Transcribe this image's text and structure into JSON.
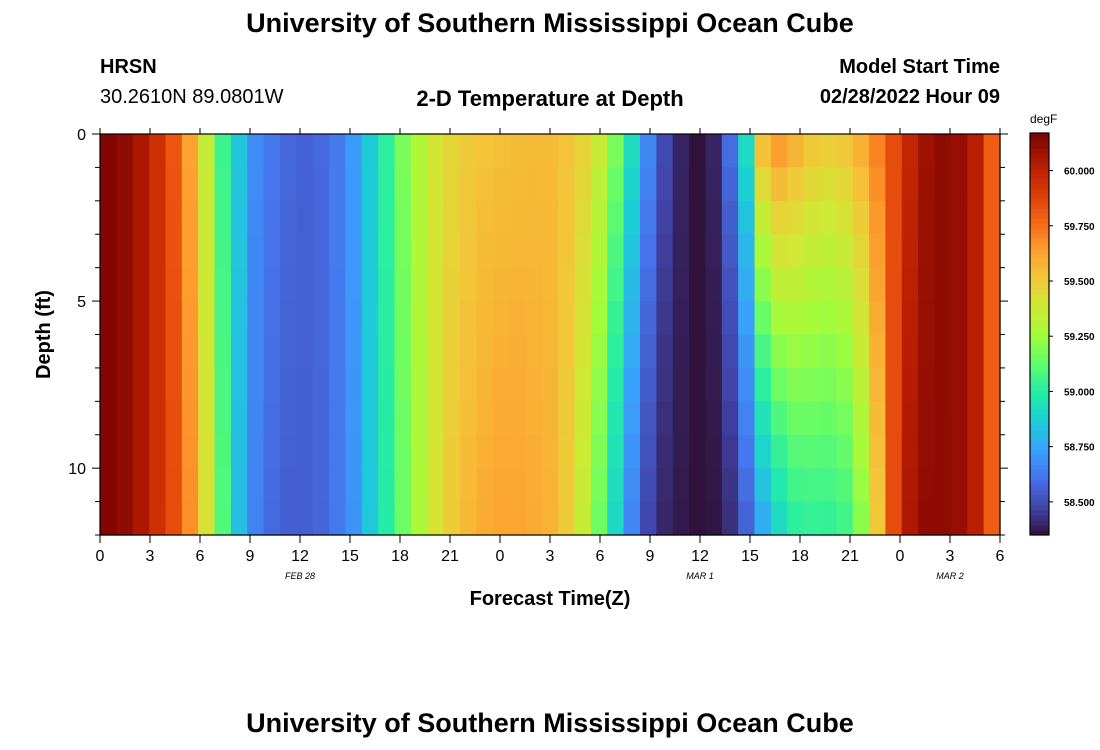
{
  "header": {
    "title": "University of Southern Mississippi Ocean Cube",
    "station_code": "HRSN",
    "station_coords": "30.2610N  89.0801W",
    "chart_title": "2-D Temperature at Depth",
    "model_start_label": "Model Start Time",
    "model_start_value": "02/28/2022 Hour 09"
  },
  "footer": {
    "title": "University of Southern Mississippi Ocean Cube"
  },
  "chart_data": {
    "type": "heatmap",
    "title": "2-D Temperature at Depth",
    "xlabel": "Forecast Time(Z)",
    "ylabel": "Depth (ft)",
    "x_unit": "hours from 00Z Feb 28",
    "xlim": [
      0,
      54
    ],
    "ylim": [
      12,
      0
    ],
    "x_ticks": [
      0,
      3,
      6,
      9,
      12,
      15,
      18,
      21,
      24,
      27,
      30,
      33,
      36,
      39,
      42,
      45,
      48,
      51,
      54
    ],
    "x_tick_labels": [
      "0",
      "3",
      "6",
      "9",
      "12",
      "15",
      "18",
      "21",
      "0",
      "3",
      "6",
      "9",
      "12",
      "15",
      "18",
      "21",
      "0",
      "3",
      "6"
    ],
    "y_ticks": [
      0,
      5,
      10
    ],
    "y_tick_labels": [
      "0",
      "5",
      "10"
    ],
    "date_labels": [
      {
        "x": 12,
        "label": "FEB 28"
      },
      {
        "x": 36,
        "label": "MAR 1"
      },
      {
        "x": 51,
        "label": "MAR 2"
      }
    ],
    "colorbar": {
      "unit": "degF",
      "ticks": [
        60.0,
        59.75,
        59.5,
        59.25,
        59.0,
        58.75,
        58.5
      ],
      "tick_labels": [
        "60.000",
        "59.750",
        "59.500",
        "59.250",
        "59.000",
        "58.750",
        "58.500"
      ],
      "range": [
        58.35,
        60.17
      ],
      "colormap": [
        "#30123b",
        "#4145ab",
        "#4675ed",
        "#39a2fc",
        "#1bcfd4",
        "#24eca6",
        "#61fc6c",
        "#a4fc3b",
        "#d1e834",
        "#f3c63a",
        "#fe9b2d",
        "#f36315",
        "#d93806",
        "#b11901",
        "#7a0402"
      ]
    },
    "hours": [
      0,
      1,
      2,
      3,
      4,
      5,
      6,
      7,
      8,
      9,
      10,
      11,
      12,
      13,
      14,
      15,
      16,
      17,
      18,
      19,
      20,
      21,
      22,
      23,
      24,
      25,
      26,
      27,
      28,
      29,
      30,
      31,
      32,
      33,
      34,
      35,
      36,
      37,
      38,
      39,
      40,
      41,
      42,
      43,
      44,
      45,
      46,
      47,
      48,
      49,
      50,
      51,
      52,
      53,
      54
    ],
    "temperature_surface": [
      60.15,
      60.12,
      60.05,
      59.95,
      59.82,
      59.62,
      59.35,
      59.05,
      58.85,
      58.68,
      58.62,
      58.58,
      58.56,
      58.58,
      58.63,
      58.72,
      58.86,
      59.02,
      59.18,
      59.3,
      59.4,
      59.46,
      59.5,
      59.52,
      59.53,
      59.54,
      59.55,
      59.55,
      59.53,
      59.48,
      59.38,
      59.2,
      58.95,
      58.68,
      58.5,
      58.4,
      58.35,
      58.4,
      58.6,
      58.95,
      59.6,
      59.7,
      59.62,
      59.55,
      59.52,
      59.55,
      59.62,
      59.72,
      59.85,
      59.98,
      60.08,
      60.12,
      60.1,
      60.02,
      59.8
    ],
    "temperature_bottom": [
      60.15,
      60.12,
      60.05,
      59.95,
      59.85,
      59.68,
      59.42,
      59.1,
      58.82,
      58.65,
      58.58,
      58.55,
      58.55,
      58.57,
      58.62,
      58.7,
      58.85,
      59.0,
      59.15,
      59.28,
      59.4,
      59.5,
      59.56,
      59.6,
      59.62,
      59.62,
      59.6,
      59.58,
      59.5,
      59.35,
      59.15,
      58.9,
      58.65,
      58.48,
      58.4,
      58.37,
      58.35,
      58.36,
      58.42,
      58.55,
      58.75,
      58.9,
      59.0,
      59.02,
      59.02,
      59.05,
      59.2,
      59.5,
      59.85,
      60.05,
      60.12,
      60.12,
      60.1,
      60.02,
      59.8
    ]
  }
}
